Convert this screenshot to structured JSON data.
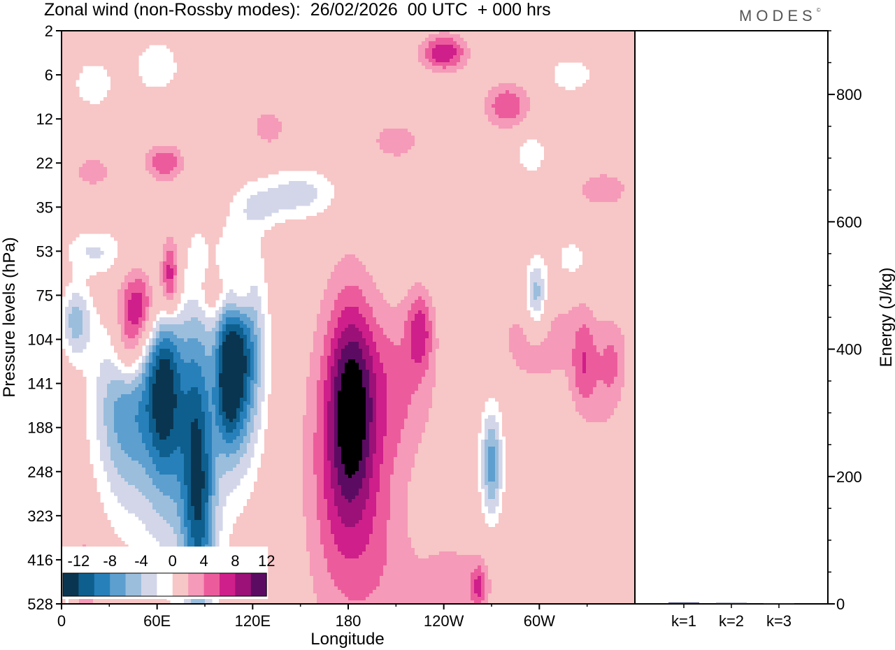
{
  "brand": "MODES",
  "brand_mark": "©",
  "chart_data": {
    "type": "heatmap",
    "title": "Zonal wind (non-Rossby modes):  26/02/2026  00 UTC  + 000 hrs",
    "xlabel": "Longitude",
    "ylabel": "Pressure levels (hPa)",
    "x_ticks": [
      "0",
      "60E",
      "120E",
      "180",
      "120W",
      "60W"
    ],
    "x_tick_degrees": [
      0,
      60,
      120,
      180,
      240,
      300
    ],
    "xlim": [
      0,
      360
    ],
    "y_ticks": [
      "2",
      "6",
      "12",
      "22",
      "35",
      "53",
      "75",
      "104",
      "141",
      "188",
      "248",
      "323",
      "416",
      "528"
    ],
    "colorbar": {
      "labels": [
        "-12",
        "-8",
        "-4",
        "0",
        "4",
        "8",
        "12"
      ],
      "levels": [
        -14,
        -12,
        -10,
        -8,
        -6,
        -4,
        -2,
        2,
        4,
        6,
        8,
        10,
        12,
        14
      ],
      "colors": [
        "#0a3550",
        "#0e5f8e",
        "#2780ba",
        "#5d9fcf",
        "#9bbedd",
        "#d3d6e8",
        "#ffffff",
        "#f7c6c6",
        "#f59ab8",
        "#ec5c9c",
        "#cf1f8a",
        "#9b1177",
        "#5c0b63"
      ]
    },
    "blobs": [
      {
        "lon": 40,
        "lev": 8.5,
        "w": 20,
        "h": 2.2,
        "value": -9
      },
      {
        "lon": 65,
        "lev": 8.0,
        "w": 12,
        "h": 2.0,
        "value": -13
      },
      {
        "lon": 85,
        "lev": 9.0,
        "w": 10,
        "h": 3.5,
        "value": -9
      },
      {
        "lon": 75,
        "lev": 10.5,
        "w": 28,
        "h": 2.5,
        "value": -5
      },
      {
        "lon": 88,
        "lev": 11.5,
        "w": 10,
        "h": 2.5,
        "value": -4
      },
      {
        "lon": 112,
        "lev": 7.3,
        "w": 14,
        "h": 2.3,
        "value": -14
      },
      {
        "lon": 104,
        "lev": 8.0,
        "w": 8,
        "h": 1.5,
        "value": -8
      },
      {
        "lon": 9,
        "lev": 6.6,
        "w": 9,
        "h": 0.8,
        "value": -7
      },
      {
        "lon": 48,
        "lev": 6.3,
        "w": 14,
        "h": 0.9,
        "value": 10
      },
      {
        "lon": 68,
        "lev": 5.6,
        "w": 6,
        "h": 0.9,
        "value": 9
      },
      {
        "lon": 42,
        "lev": 7.3,
        "w": 10,
        "h": 0.8,
        "value": 6
      },
      {
        "lon": 113,
        "lev": 5.9,
        "w": 7,
        "h": 0.9,
        "value": 5
      },
      {
        "lon": 182,
        "lev": 8.4,
        "w": 14,
        "h": 2.3,
        "value": 9
      },
      {
        "lon": 175,
        "lev": 10.0,
        "w": 22,
        "h": 3.5,
        "value": 6
      },
      {
        "lon": 200,
        "lev": 11.5,
        "w": 20,
        "h": 3.0,
        "value": 3
      },
      {
        "lon": 210,
        "lev": 8.0,
        "w": 26,
        "h": 1.8,
        "value": 4
      },
      {
        "lon": 245,
        "lev": 12.6,
        "w": 28,
        "h": 1.2,
        "value": 3
      },
      {
        "lon": 262,
        "lev": 12.6,
        "w": 5,
        "h": 0.5,
        "value": 5
      },
      {
        "lon": 225,
        "lev": 6.8,
        "w": 8,
        "h": 0.9,
        "value": 6
      },
      {
        "lon": 300,
        "lev": 7.0,
        "w": 30,
        "h": 1.3,
        "value": 3
      },
      {
        "lon": 328,
        "lev": 7.6,
        "w": 8,
        "h": 1.2,
        "value": 5
      },
      {
        "lon": 346,
        "lev": 7.5,
        "w": 10,
        "h": 1.0,
        "value": 4
      },
      {
        "lon": 270,
        "lev": 9.8,
        "w": 7,
        "h": 1.3,
        "value": -9
      },
      {
        "lon": 298,
        "lev": 6.0,
        "w": 7,
        "h": 0.8,
        "value": -8
      },
      {
        "lon": 320,
        "lev": 5.2,
        "w": 14,
        "h": 0.6,
        "value": -3
      },
      {
        "lon": 100,
        "lev": 6.0,
        "w": 16,
        "h": 0.6,
        "value": 4
      },
      {
        "lon": 150,
        "lev": 3.7,
        "w": 24,
        "h": 0.6,
        "value": -5
      },
      {
        "lon": 125,
        "lev": 4.0,
        "w": 14,
        "h": 0.5,
        "value": -3
      },
      {
        "lon": 20,
        "lev": 5.0,
        "w": 18,
        "h": 0.5,
        "value": -4
      },
      {
        "lon": 240,
        "lev": 0.5,
        "w": 14,
        "h": 0.4,
        "value": 8
      },
      {
        "lon": 280,
        "lev": 1.7,
        "w": 14,
        "h": 0.5,
        "value": 6
      },
      {
        "lon": 65,
        "lev": 3.0,
        "w": 12,
        "h": 0.4,
        "value": 6
      },
      {
        "lon": 60,
        "lev": 0.8,
        "w": 14,
        "h": 0.6,
        "value": -4
      },
      {
        "lon": 20,
        "lev": 1.2,
        "w": 16,
        "h": 0.7,
        "value": -3
      },
      {
        "lon": 295,
        "lev": 2.8,
        "w": 12,
        "h": 0.6,
        "value": -3
      },
      {
        "lon": 340,
        "lev": 3.6,
        "w": 20,
        "h": 0.5,
        "value": 3
      },
      {
        "lon": 210,
        "lev": 2.5,
        "w": 18,
        "h": 0.5,
        "value": 3
      },
      {
        "lon": 320,
        "lev": 1.0,
        "w": 18,
        "h": 0.5,
        "value": -3
      },
      {
        "lon": 15,
        "lev": 12.4,
        "w": 8,
        "h": 1.5,
        "value": 3
      },
      {
        "lon": 4,
        "lev": 12.8,
        "w": 4,
        "h": 1.0,
        "value": -3
      },
      {
        "lon": 340,
        "lev": 10.5,
        "w": 18,
        "h": 2.5,
        "value": -2.5
      },
      {
        "lon": 340,
        "lev": 9.0,
        "w": 12,
        "h": 1.5,
        "value": 3
      },
      {
        "lon": 20,
        "lev": 3.2,
        "w": 14,
        "h": 0.4,
        "value": 3
      },
      {
        "lon": 130,
        "lev": 2.2,
        "w": 12,
        "h": 0.5,
        "value": 3
      }
    ],
    "bar_panel": {
      "ylabel": "Energy (J/kg)",
      "categories": [
        "k=1",
        "k=2",
        "k=3"
      ],
      "values": [
        2.0,
        1.5,
        1.0
      ],
      "ylim": [
        0,
        900
      ],
      "y_ticks": [
        0,
        200,
        400,
        600,
        800
      ]
    }
  }
}
